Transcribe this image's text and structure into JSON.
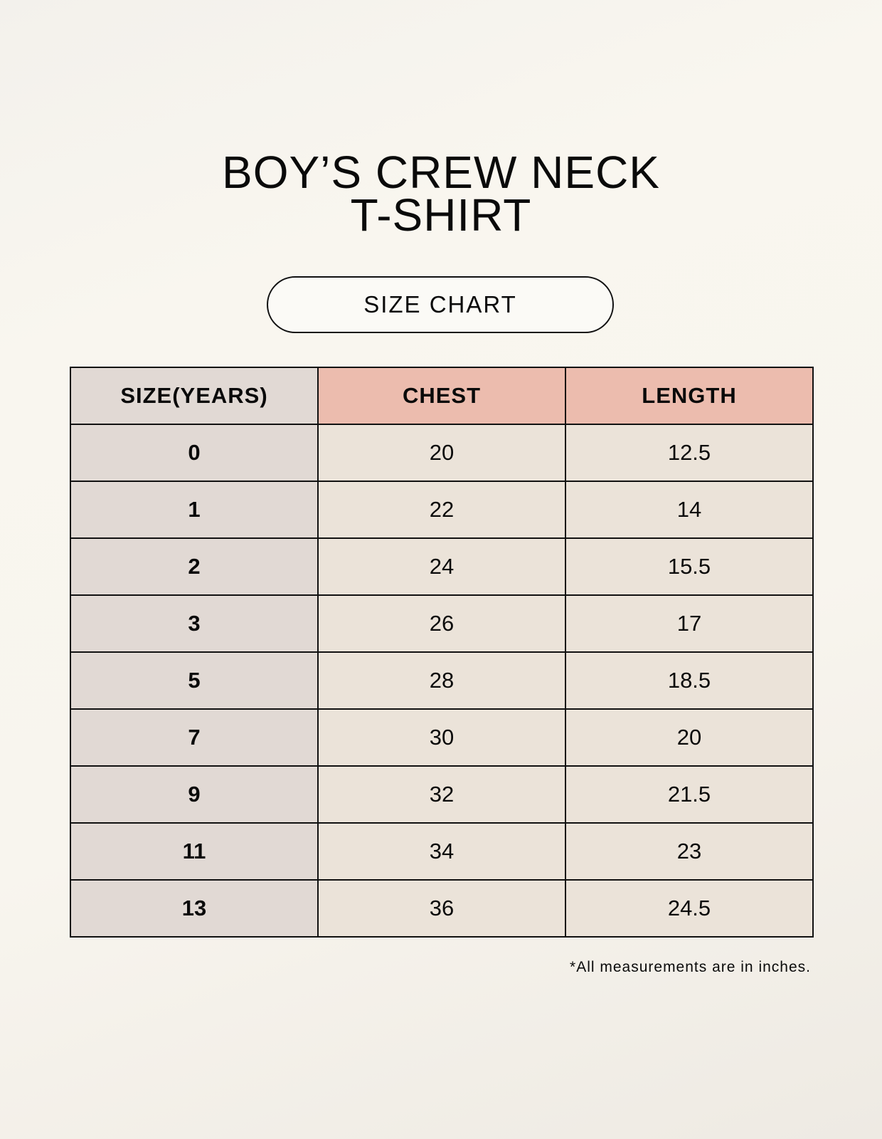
{
  "title_line1": "BOY’S CREW NECK",
  "title_line2": "T-SHIRT",
  "badge": "SIZE CHART",
  "table": {
    "headers": [
      "SIZE(YEARS)",
      "CHEST",
      "LENGTH"
    ],
    "rows": [
      [
        "0",
        "20",
        "12.5"
      ],
      [
        "1",
        "22",
        "14"
      ],
      [
        "2",
        "24",
        "15.5"
      ],
      [
        "3",
        "26",
        "17"
      ],
      [
        "5",
        "28",
        "18.5"
      ],
      [
        "7",
        "30",
        "20"
      ],
      [
        "9",
        "32",
        "21.5"
      ],
      [
        "11",
        "34",
        "23"
      ],
      [
        "13",
        "36",
        "24.5"
      ]
    ]
  },
  "note": "*All measurements are in inches.",
  "colors": {
    "size_column": "#e1d9d4",
    "header_accent": "#ecbcae",
    "cell_bg": "#ebe3d9"
  }
}
